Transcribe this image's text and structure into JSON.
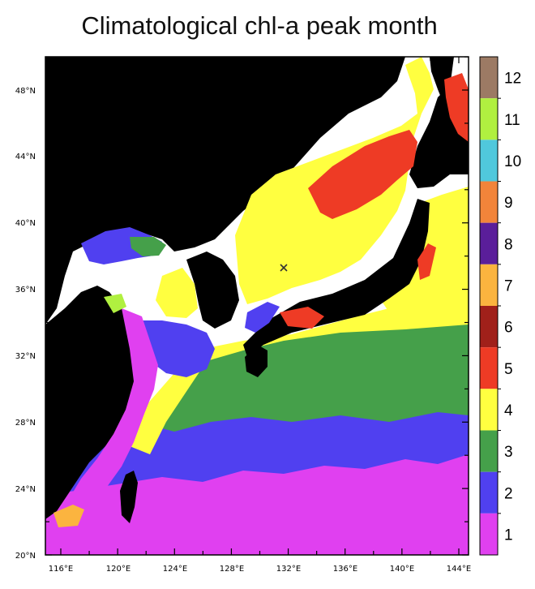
{
  "title": "Climatological chl-a peak month",
  "colors": {
    "land": "#000000",
    "month_1": "#e040f0",
    "month_2": "#5040f0",
    "month_3": "#45a04a",
    "month_4": "#ffff40",
    "month_5": "#ee3b25",
    "month_6": "#a0201a",
    "month_7": "#fbb43f",
    "month_8": "#5a1e9a",
    "month_9": "#f2843a",
    "month_10": "#50c8dc",
    "month_11": "#b0f040",
    "month_12": "#9c7a64"
  },
  "map": {
    "lon_labels": [
      "116°E",
      "120°E",
      "124°E",
      "128°E",
      "132°E",
      "136°E",
      "140°E",
      "144°E"
    ],
    "lat_labels": [
      "48°N",
      "44°N",
      "40°N",
      "36°N",
      "32°N",
      "28°N",
      "24°N",
      "20°N"
    ],
    "marker": "x"
  },
  "colorbar": {
    "labels": [
      "12",
      "11",
      "10",
      "9",
      "8",
      "7",
      "6",
      "5",
      "4",
      "3",
      "2",
      "1"
    ],
    "colors": [
      "#9c7a64",
      "#b0f040",
      "#50c8dc",
      "#f2843a",
      "#5a1e9a",
      "#fbb43f",
      "#a0201a",
      "#ee3b25",
      "#ffff40",
      "#45a04a",
      "#5040f0",
      "#e040f0"
    ]
  }
}
